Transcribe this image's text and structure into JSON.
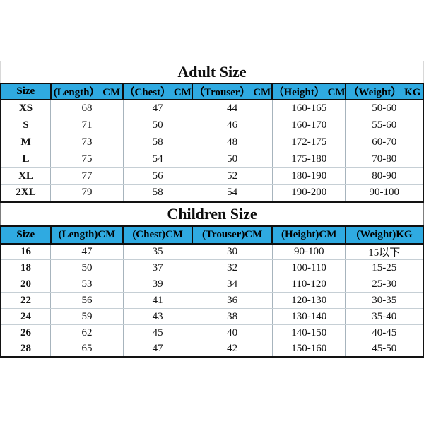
{
  "page": {
    "background": "#ffffff"
  },
  "colors": {
    "header_bg": "#2FAAE1",
    "table_border": "#121212",
    "grid_line": "#c6cfd5",
    "title_border": "#d8d8d8"
  },
  "chart_data": [
    {
      "type": "table",
      "title": "Adult Size",
      "columns": [
        "Size",
        "(Length） CM",
        "（Chest） CM",
        "（Trouser） CM",
        "（Height） CM",
        "（Weight） KG"
      ],
      "rows": [
        [
          "XS",
          "68",
          "47",
          "44",
          "160-165",
          "50-60"
        ],
        [
          "S",
          "71",
          "50",
          "46",
          "160-170",
          "55-60"
        ],
        [
          "M",
          "73",
          "58",
          "48",
          "172-175",
          "60-70"
        ],
        [
          "L",
          "75",
          "54",
          "50",
          "175-180",
          "70-80"
        ],
        [
          "XL",
          "77",
          "56",
          "52",
          "180-190",
          "80-90"
        ],
        [
          "2XL",
          "79",
          "58",
          "54",
          "190-200",
          "90-100"
        ]
      ]
    },
    {
      "type": "table",
      "title": "Children Size",
      "columns": [
        "Size",
        "(Length)CM",
        "(Chest)CM",
        "(Trouser)CM",
        "(Height)CM",
        "(Weight)KG"
      ],
      "rows": [
        [
          "16",
          "47",
          "35",
          "30",
          "90-100",
          "15以下"
        ],
        [
          "18",
          "50",
          "37",
          "32",
          "100-110",
          "15-25"
        ],
        [
          "20",
          "53",
          "39",
          "34",
          "110-120",
          "25-30"
        ],
        [
          "22",
          "56",
          "41",
          "36",
          "120-130",
          "30-35"
        ],
        [
          "24",
          "59",
          "43",
          "38",
          "130-140",
          "35-40"
        ],
        [
          "26",
          "62",
          "45",
          "40",
          "140-150",
          "40-45"
        ],
        [
          "28",
          "65",
          "47",
          "42",
          "150-160",
          "45-50"
        ]
      ]
    }
  ]
}
